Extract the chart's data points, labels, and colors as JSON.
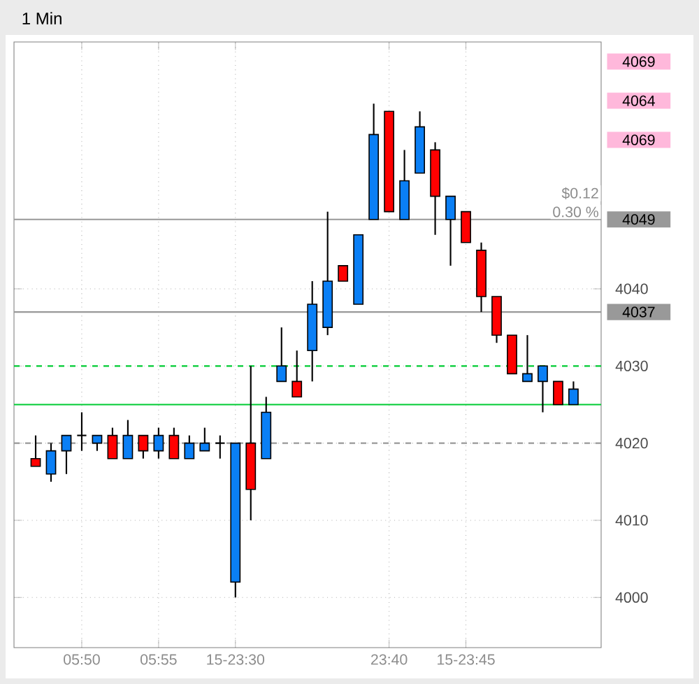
{
  "chart_data": {
    "type": "candlestick",
    "title": "1 Min",
    "categories": [
      null,
      null,
      null,
      "05:50",
      null,
      null,
      null,
      null,
      "05:55",
      null,
      null,
      null,
      null,
      "15-23:30",
      null,
      null,
      null,
      null,
      null,
      null,
      null,
      null,
      null,
      "23:40",
      null,
      null,
      null,
      null,
      "15-23:45",
      null,
      null,
      null,
      null,
      null,
      null,
      null
    ],
    "ohlc": [
      [
        4018,
        4021,
        4017,
        4017
      ],
      [
        4016,
        4020,
        4015,
        4019
      ],
      [
        4019,
        4021,
        4016,
        4021
      ],
      [
        4021,
        4024,
        4019,
        4021
      ],
      [
        4020,
        4021,
        4019,
        4021
      ],
      [
        4021,
        4022,
        4018,
        4018
      ],
      [
        4018,
        4023,
        4018,
        4021
      ],
      [
        4021,
        4021,
        4018,
        4019
      ],
      [
        4019,
        4022,
        4018,
        4021
      ],
      [
        4021,
        4022,
        4018,
        4018
      ],
      [
        4018,
        4021,
        4018,
        4020
      ],
      [
        4019,
        4022,
        4019,
        4020
      ],
      [
        4020,
        4021,
        4018,
        4020
      ],
      [
        4002,
        4020,
        4000,
        4020
      ],
      [
        4020,
        4030,
        4010,
        4014
      ],
      [
        4018,
        4026,
        4018,
        4024
      ],
      [
        4028,
        4035,
        4028,
        4030
      ],
      [
        4028,
        4032,
        4026,
        4026
      ],
      [
        4032,
        4041,
        4028,
        4038
      ],
      [
        4035,
        4050,
        4034,
        4041
      ],
      [
        4043,
        4043,
        4041,
        4041
      ],
      [
        4038,
        4047,
        4038,
        4047
      ],
      [
        4049,
        4064,
        4049,
        4060
      ],
      [
        4063,
        4063,
        4050,
        4050
      ],
      [
        4049,
        4058,
        4049,
        4054
      ],
      [
        4055,
        4063,
        4055,
        4061
      ],
      [
        4058,
        4059,
        4047,
        4052
      ],
      [
        4049,
        4052,
        4043,
        4052
      ],
      [
        4050,
        4050,
        4046,
        4046
      ],
      [
        4045,
        4046,
        4037,
        4039
      ],
      [
        4039,
        4039,
        4033,
        4034
      ],
      [
        4034,
        4034,
        4029,
        4029
      ],
      [
        4028,
        4034,
        4028,
        4029
      ],
      [
        4028,
        4030,
        4024,
        4030
      ],
      [
        4028,
        4028,
        4025,
        4025
      ],
      [
        4025,
        4028,
        4025,
        4027
      ]
    ],
    "colors": [
      "#ff0000",
      "#0a7ff5",
      "#0a7ff5",
      "#000000",
      "#0a7ff5",
      "#ff0000",
      "#0a7ff5",
      "#ff0000",
      "#0a7ff5",
      "#ff0000",
      "#0a7ff5",
      "#0a7ff5",
      "#000000",
      "#0a7ff5",
      "#ff0000",
      "#0a7ff5",
      "#0a7ff5",
      "#ff0000",
      "#0a7ff5",
      "#0a7ff5",
      "#ff0000",
      "#0a7ff5",
      "#0a7ff5",
      "#ff0000",
      "#0a7ff5",
      "#0a7ff5",
      "#ff0000",
      "#0a7ff5",
      "#ff0000",
      "#ff0000",
      "#ff0000",
      "#ff0000",
      "#0a7ff5",
      "#0a7ff5",
      "#ff0000",
      "#0a7ff5"
    ],
    "ylim": [
      3993.5,
      4072
    ],
    "yticks": [
      4000,
      4010,
      4020,
      4030,
      4040
    ],
    "grid": true,
    "ref_lines": [
      {
        "axis": "y",
        "value": 4049,
        "label": "4049",
        "color": "#999999",
        "line_style": "solid"
      },
      {
        "axis": "y",
        "value": 4037,
        "label": "4037",
        "color": "#999999",
        "line_style": "solid"
      },
      {
        "axis": "y",
        "value": 4030,
        "color": "#00cc33",
        "line_style": "dashed"
      },
      {
        "axis": "y",
        "value": 4025,
        "color": "#00cc33",
        "line_style": "solid"
      },
      {
        "axis": "y",
        "value": 4020,
        "color": "#999999",
        "line_style": "dashed"
      }
    ],
    "annotations": [
      "4069",
      "4064",
      "4069",
      "$0.12",
      "0.30 %"
    ]
  }
}
